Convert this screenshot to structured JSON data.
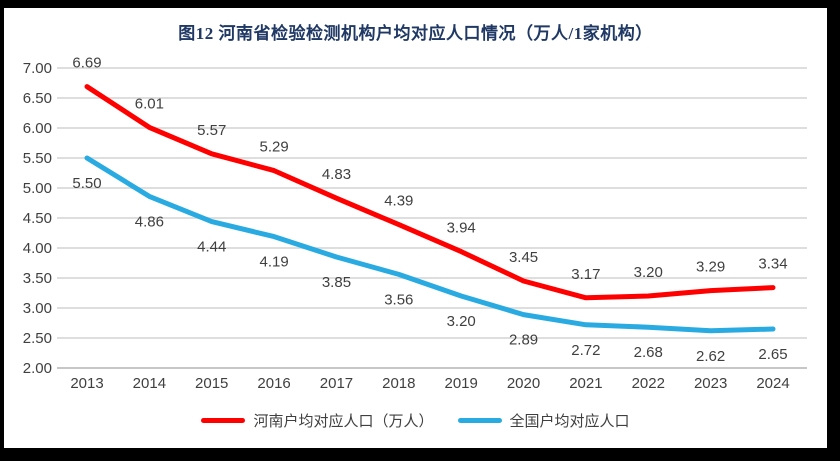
{
  "title": "图12  河南省检验检测机构户均对应人口情况（万人/1家机构）",
  "title_color": "#1F3864",
  "chart_data": {
    "type": "line",
    "categories": [
      "2013",
      "2014",
      "2015",
      "2016",
      "2017",
      "2018",
      "2019",
      "2020",
      "2021",
      "2022",
      "2023",
      "2024"
    ],
    "series": [
      {
        "key": "henan",
        "name": "河南户均对应人口（万人）",
        "color": "#FF0000",
        "values": [
          6.69,
          6.01,
          5.57,
          5.29,
          4.83,
          4.39,
          3.94,
          3.45,
          3.17,
          3.2,
          3.29,
          3.34
        ],
        "label_position": "above"
      },
      {
        "key": "national",
        "name": "全国户均对应人口",
        "color": "#29ABE2",
        "values": [
          5.5,
          4.86,
          4.44,
          4.19,
          3.85,
          3.56,
          3.2,
          2.89,
          2.72,
          2.68,
          2.62,
          2.65
        ],
        "label_position": "below"
      }
    ],
    "ylim": [
      2.0,
      7.0
    ],
    "ytick_step": 0.5,
    "yticks": [
      "7.00",
      "6.50",
      "6.00",
      "5.50",
      "5.00",
      "4.50",
      "4.00",
      "3.50",
      "3.00",
      "2.50",
      "2.00"
    ],
    "xlabel": "",
    "ylabel": "",
    "grid": true,
    "grid_color": "#D9D9D9",
    "axis_color": "#BFBFBF",
    "text_color": "#404040",
    "legend_position": "bottom",
    "line_width": 5,
    "data_label_format": "0.00"
  }
}
